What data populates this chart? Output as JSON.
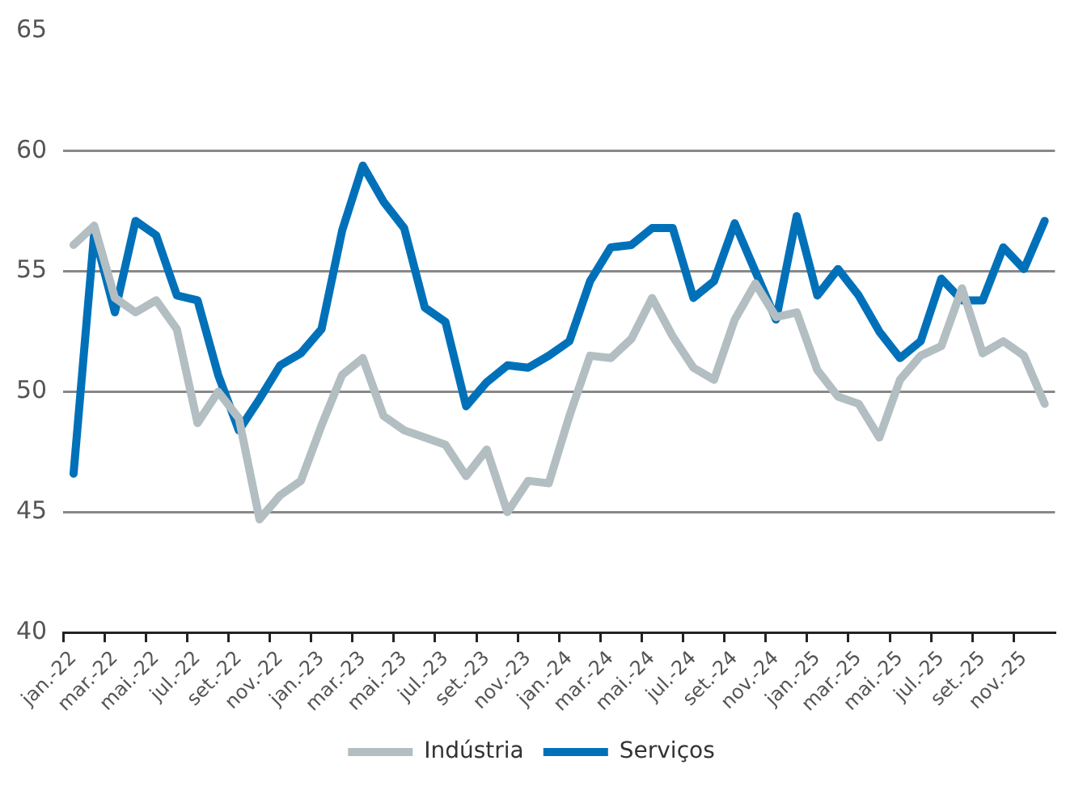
{
  "chart_data": {
    "type": "line",
    "categories": [
      "jan.-22",
      null,
      "mar.-22",
      null,
      "mai.-22",
      null,
      "jul.-22",
      null,
      "set.-22",
      null,
      "nov.-22",
      null,
      "jan.-23",
      null,
      "mar.-23",
      null,
      "mai.-23",
      null,
      "jul.-23",
      null,
      "set.-23",
      null,
      "nov.-23",
      null,
      "jan.-24",
      null,
      "mar.-24",
      null,
      "mai.-24",
      null,
      "jul.-24",
      null,
      "set.-24",
      null,
      "nov.-24",
      null,
      "jan.-25",
      null,
      "mar.-25",
      null,
      "mai.-25",
      null,
      "jul.-25",
      null,
      "set.-25",
      null,
      "nov.-25",
      null
    ],
    "series": [
      {
        "name": "Indústria",
        "color": "#b3bec2",
        "values": [
          56.1,
          56.9,
          53.9,
          53.3,
          53.8,
          52.6,
          48.7,
          50.0,
          48.9,
          44.7,
          45.7,
          46.3,
          48.6,
          50.7,
          51.4,
          49.0,
          48.4,
          48.1,
          47.8,
          46.5,
          47.6,
          45.0,
          46.3,
          46.2,
          49.0,
          51.5,
          51.4,
          52.2,
          53.9,
          52.3,
          51.0,
          50.5,
          53.0,
          54.5,
          53.1,
          53.3,
          50.9,
          49.8,
          49.5,
          48.1,
          50.5,
          51.5,
          51.9,
          54.3,
          51.6,
          52.1,
          51.5,
          49.5
        ]
      },
      {
        "name": "Serviços",
        "color": "#0071b9",
        "values": [
          46.6,
          56.6,
          53.3,
          57.1,
          56.5,
          54.0,
          53.8,
          50.7,
          48.4,
          49.7,
          51.1,
          51.6,
          52.6,
          56.7,
          59.4,
          57.9,
          56.8,
          53.5,
          52.9,
          49.4,
          50.4,
          51.1,
          51.0,
          51.5,
          52.1,
          54.6,
          56.0,
          56.1,
          56.8,
          56.8,
          53.9,
          54.6,
          57.0,
          55.0,
          53.0,
          57.3,
          54.0,
          55.1,
          54.0,
          52.5,
          51.4,
          52.1,
          54.7,
          53.8,
          53.8,
          56.0,
          55.1,
          57.1
        ]
      }
    ],
    "ylim": [
      40,
      65
    ],
    "yticks": [
      40,
      45,
      50,
      55,
      60,
      65
    ],
    "grid": "y",
    "legend": "bottom",
    "marker": "none",
    "line_style": "solid"
  }
}
